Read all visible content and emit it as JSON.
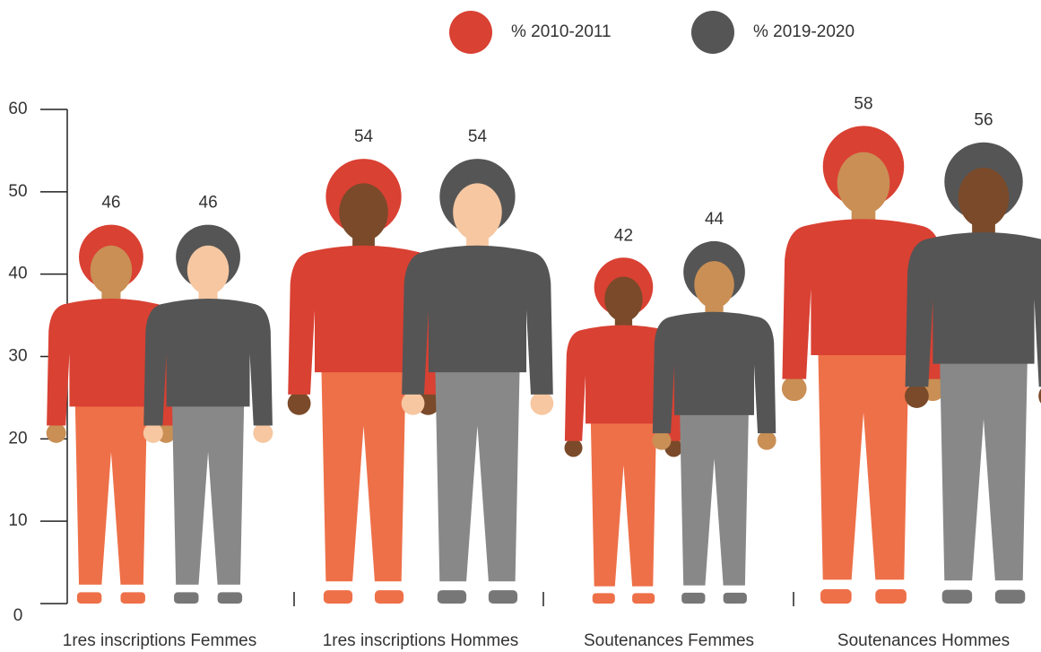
{
  "chart_data": {
    "type": "bar",
    "categories": [
      "1res inscriptions Femmes",
      "1res inscriptions Hommes",
      "Soutenances Femmes",
      "Soutenances Hommes"
    ],
    "series": [
      {
        "name": "% 2010-2011",
        "color": "#d94133",
        "values": [
          46,
          54,
          42,
          58
        ]
      },
      {
        "name": "% 2019-2020",
        "color": "#555555",
        "values": [
          46,
          54,
          44,
          56
        ]
      }
    ],
    "ylim": [
      0,
      60
    ],
    "yticks": [
      0,
      10,
      20,
      30,
      40,
      50,
      60
    ],
    "legend": "top"
  }
}
